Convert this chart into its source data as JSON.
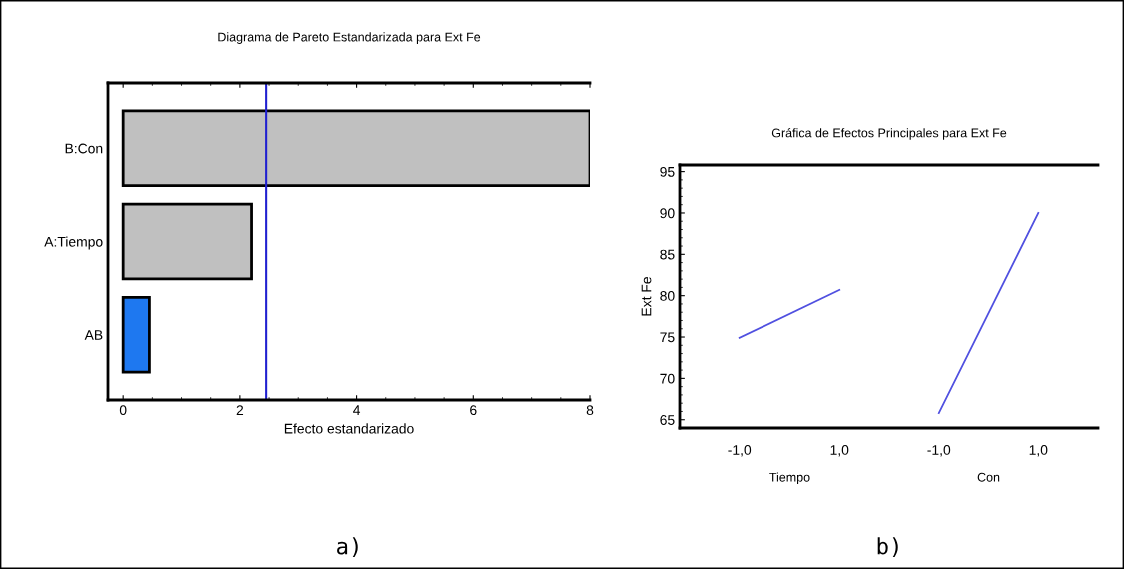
{
  "chart_data": [
    {
      "type": "bar",
      "orientation": "horizontal",
      "title": "Diagrama de Pareto Estandarizada para Ext Fe",
      "xlabel": "Efecto estandarizado",
      "categories": [
        "B:Con",
        "A:Tiempo",
        "AB"
      ],
      "values": [
        8,
        2.2,
        0.45
      ],
      "colors": [
        "#c0c0c0",
        "#c0c0c0",
        "#1e78f0"
      ],
      "xlim": [
        -0.26,
        8
      ],
      "xticks": [
        0,
        2,
        4,
        6,
        8
      ],
      "grid": false,
      "ref_lines": [
        {
          "axis": "x",
          "value": 2.45,
          "label": null,
          "color": "#2020d0"
        }
      ],
      "annotations": [
        "a)"
      ]
    },
    {
      "type": "line",
      "title": "Gráfica de Efectos Principales para Ext Fe",
      "ylabel": "Ext Fe",
      "series": [
        {
          "color": "#5050e0",
          "values": [
            74.9,
            80.7,
            null,
            null
          ]
        },
        {
          "color": "#5050e0",
          "values": [
            null,
            null,
            65.8,
            90.0
          ]
        }
      ],
      "categories": [
        "-1,0",
        "1,0",
        "-1,0",
        "1,0"
      ],
      "ylim": [
        64,
        95.8
      ],
      "yticks": [
        65,
        70,
        75,
        80,
        85,
        90,
        95
      ],
      "grid": false,
      "marker": "none",
      "line_style": "solid",
      "annotations": [
        "Tiempo",
        "Con",
        "b)"
      ]
    }
  ]
}
